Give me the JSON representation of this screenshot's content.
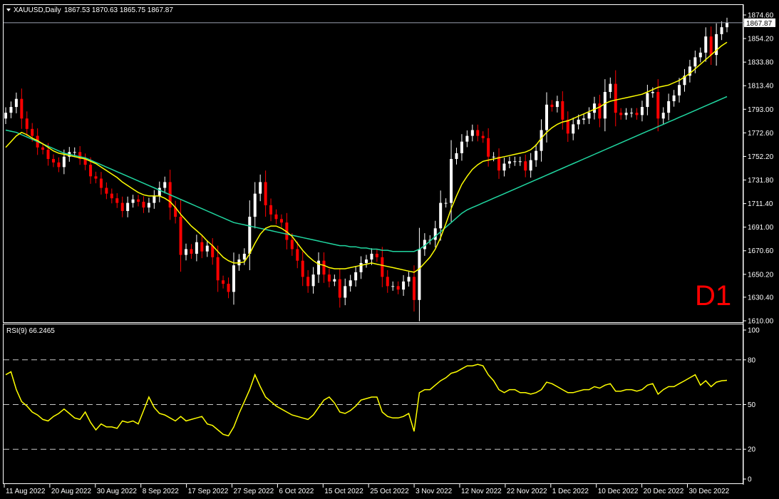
{
  "header": {
    "symbol_label": "XAUUSD,Daily",
    "ohlc_text": "1867.53 1870.63 1865.75 1867.87"
  },
  "rsi_header": {
    "label": "RSI(9) 66.2465"
  },
  "timeframe_badge": "D1",
  "colors": {
    "background": "#000000",
    "axis": "#ffffff",
    "bull_candle": "#ffffff",
    "bear_candle": "#ff0000",
    "ma_fast": "#ffff00",
    "ma_slow": "#20d6a0",
    "rsi": "#ffff00",
    "badge": "#ff0000"
  },
  "chart_data": [
    {
      "type": "candlestick",
      "title": "XAUUSD,Daily",
      "price_axis_ticks": [
        "1874.60",
        "1854.20",
        "1833.80",
        "1813.40",
        "1793.00",
        "1772.60",
        "1752.20",
        "1731.80",
        "1711.40",
        "1691.00",
        "1670.60",
        "1650.20",
        "1630.40",
        "1610.00"
      ],
      "current_price_label": "1867.87",
      "date_axis_labels": [
        "11 Aug 2022",
        "20 Aug 2022",
        "30 Aug 2022",
        "8 Sep 2022",
        "17 Sep 2022",
        "27 Sep 2022",
        "6 Oct 2022",
        "15 Oct 2022",
        "25 Oct 2022",
        "3 Nov 2022",
        "12 Nov 2022",
        "22 Nov 2022",
        "1 Dec 2022",
        "10 Dec 2022",
        "20 Dec 2022",
        "30 Dec 2022"
      ],
      "ylim": [
        1610.0,
        1874.6
      ],
      "grid": false,
      "closes": [
        1790,
        1795,
        1802,
        1785,
        1776,
        1770,
        1760,
        1758,
        1750,
        1747,
        1743,
        1752,
        1756,
        1756,
        1750,
        1745,
        1735,
        1733,
        1725,
        1720,
        1716,
        1712,
        1705,
        1712,
        1715,
        1713,
        1708,
        1712,
        1718,
        1725,
        1730,
        1708,
        1700,
        1667,
        1672,
        1668,
        1678,
        1670,
        1675,
        1665,
        1645,
        1642,
        1635,
        1658,
        1663,
        1668,
        1700,
        1720,
        1730,
        1710,
        1702,
        1698,
        1695,
        1680,
        1672,
        1662,
        1648,
        1640,
        1650,
        1662,
        1650,
        1644,
        1646,
        1630,
        1640,
        1645,
        1652,
        1660,
        1663,
        1668,
        1665,
        1648,
        1640,
        1640,
        1637,
        1644,
        1648,
        1628,
        1672,
        1680,
        1680,
        1690,
        1712,
        1712,
        1750,
        1755,
        1765,
        1770,
        1775,
        1770,
        1768,
        1752,
        1752,
        1740,
        1746,
        1748,
        1748,
        1748,
        1740,
        1749,
        1757,
        1775,
        1797,
        1795,
        1800,
        1784,
        1772,
        1780,
        1784,
        1785,
        1790,
        1798,
        1785,
        1808,
        1815,
        1790,
        1788,
        1790,
        1790,
        1788,
        1795,
        1807,
        1808,
        1785,
        1790,
        1800,
        1805,
        1814,
        1822,
        1830,
        1838,
        1842,
        1856,
        1840,
        1858,
        1864,
        1867.87
      ],
      "ma_fast_period_note": "",
      "series": [
        {
          "values": [
            1760,
            1765,
            1770,
            1773,
            1771,
            1768,
            1766,
            1763,
            1760,
            1757,
            1755,
            1754,
            1753,
            1752,
            1751,
            1750,
            1748,
            1746,
            1743,
            1740,
            1737,
            1734,
            1730,
            1727,
            1724,
            1721,
            1719,
            1718,
            1718,
            1718,
            1716,
            1713,
            1708,
            1702,
            1697,
            1692,
            1688,
            1684,
            1679,
            1675,
            1670,
            1665,
            1662,
            1660,
            1660,
            1661,
            1668,
            1677,
            1685,
            1690,
            1692,
            1692,
            1690,
            1687,
            1683,
            1677,
            1671,
            1666,
            1662,
            1659,
            1658,
            1656,
            1655,
            1655,
            1655,
            1656,
            1657,
            1658,
            1659,
            1660,
            1659,
            1658,
            1657,
            1656,
            1655,
            1654,
            1653,
            1652,
            1655,
            1660,
            1665,
            1672,
            1682,
            1694,
            1707,
            1718,
            1728,
            1735,
            1741,
            1745,
            1748,
            1749,
            1750,
            1751,
            1752,
            1753,
            1754,
            1755,
            1756,
            1758,
            1762,
            1768,
            1773,
            1777,
            1780,
            1782,
            1783,
            1785,
            1787,
            1789,
            1791,
            1793,
            1795,
            1798,
            1800,
            1801,
            1802,
            1803,
            1804,
            1805,
            1806,
            1808,
            1810,
            1812,
            1813,
            1814,
            1816,
            1818,
            1821,
            1824,
            1828,
            1832,
            1836,
            1840,
            1844,
            1848,
            1851
          ]
        },
        {
          "values": [
            1775,
            1774,
            1773,
            1771,
            1769,
            1767,
            1765,
            1763,
            1761,
            1759,
            1757,
            1755,
            1754,
            1753,
            1752,
            1751,
            1749,
            1747,
            1745,
            1743,
            1741,
            1739,
            1737,
            1735,
            1733,
            1731,
            1729,
            1727,
            1725,
            1723,
            1721,
            1719,
            1717,
            1715,
            1713,
            1711,
            1709,
            1707,
            1705,
            1703,
            1701,
            1699,
            1697,
            1695,
            1694,
            1693,
            1692,
            1691,
            1690,
            1689,
            1688,
            1687,
            1686,
            1685,
            1684,
            1683,
            1682,
            1681,
            1680,
            1679,
            1678,
            1677,
            1676,
            1675,
            1675,
            1674,
            1674,
            1673,
            1673,
            1672,
            1672,
            1671,
            1671,
            1670,
            1670,
            1670,
            1670,
            1670,
            1672,
            1675,
            1679,
            1683,
            1687,
            1691,
            1695,
            1699,
            1703,
            1706,
            1708,
            1710,
            1712,
            1714,
            1716,
            1718,
            1720,
            1722,
            1724,
            1726,
            1728,
            1730,
            1732,
            1734,
            1736,
            1738,
            1740,
            1742,
            1744,
            1746,
            1748,
            1750,
            1752,
            1754,
            1756,
            1758,
            1760,
            1762,
            1764,
            1766,
            1768,
            1770,
            1772,
            1774,
            1776,
            1778,
            1780,
            1782,
            1784,
            1786,
            1788,
            1790,
            1792,
            1794,
            1796,
            1798,
            1800,
            1802,
            1804
          ]
        }
      ]
    },
    {
      "type": "line",
      "title": "RSI(9) 66.2465",
      "ylim": [
        0,
        100
      ],
      "y_ticks": [
        "100",
        "80",
        "50",
        "20",
        "0"
      ],
      "levels": [
        80,
        50,
        20
      ],
      "values": [
        70,
        72,
        60,
        52,
        49,
        45,
        43,
        40,
        39,
        42,
        44,
        47,
        44,
        41,
        40,
        45,
        38,
        33,
        37,
        35,
        35,
        34,
        39,
        38,
        39,
        37,
        46,
        55,
        48,
        44,
        43,
        41,
        39,
        42,
        39,
        40,
        41,
        42,
        37,
        36,
        33,
        30,
        29,
        35,
        44,
        52,
        60,
        70,
        62,
        55,
        52,
        49,
        47,
        45,
        43,
        42,
        41,
        40,
        43,
        48,
        53,
        55,
        51,
        45,
        44,
        46,
        49,
        53,
        54,
        55,
        55,
        45,
        42,
        41,
        41,
        42,
        44,
        32,
        58,
        60,
        60,
        63,
        66,
        68,
        71,
        72,
        74,
        76,
        76,
        77,
        76,
        70,
        66,
        60,
        58,
        60,
        60,
        58,
        58,
        57,
        58,
        60,
        65,
        64,
        62,
        60,
        58,
        58,
        59,
        60,
        60,
        62,
        61,
        63,
        64,
        59,
        59,
        60,
        60,
        59,
        60,
        63,
        64,
        57,
        60,
        62,
        62,
        64,
        66,
        68,
        70,
        63,
        66,
        62,
        65,
        66,
        66.2465
      ]
    }
  ]
}
